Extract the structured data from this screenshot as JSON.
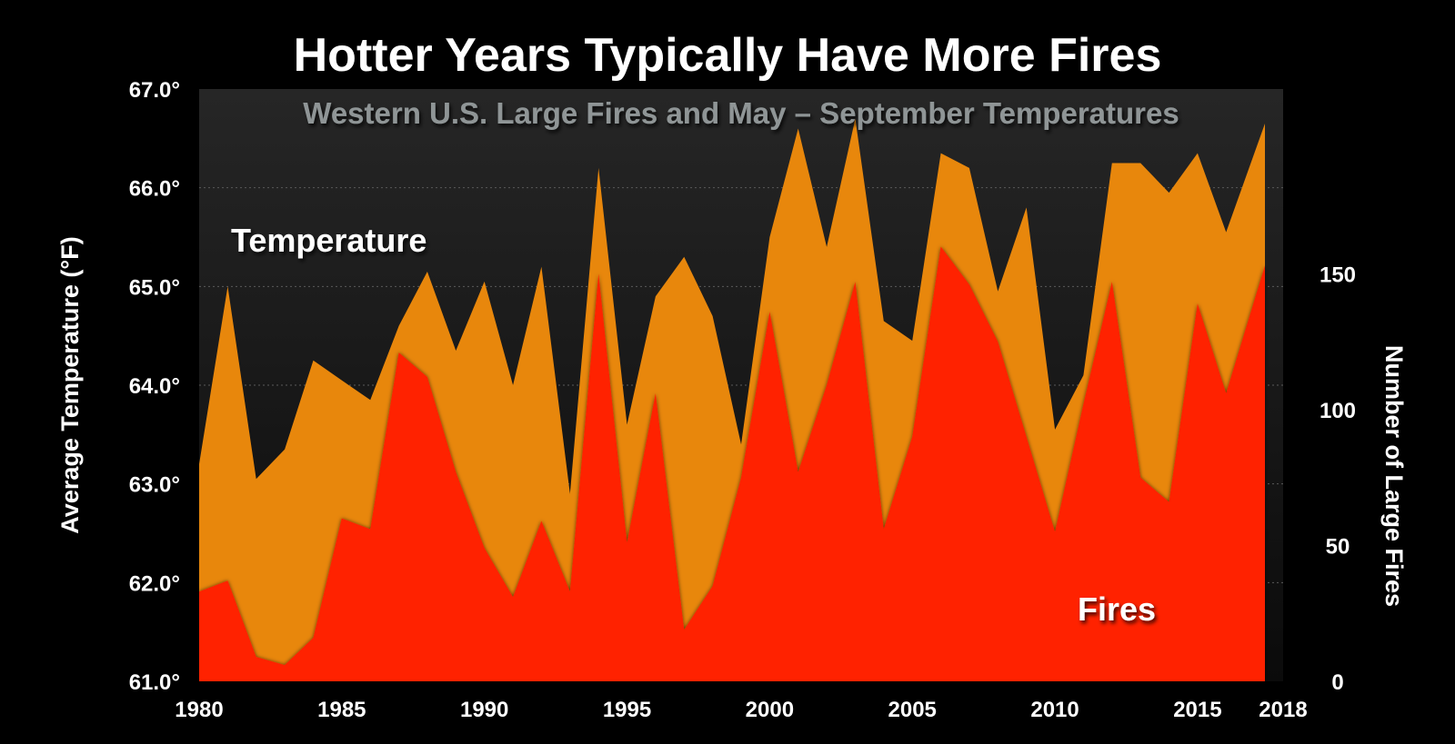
{
  "chart_data": {
    "type": "area",
    "title": "Hotter Years Typically Have More Fires",
    "subtitle": "Western U.S. Large Fires and May – September Temperatures",
    "ylabel_left": "Average Temperature (°F)",
    "ylabel_right": "Number of Large Fires",
    "x": [
      1980,
      1981,
      1982,
      1983,
      1984,
      1985,
      1986,
      1987,
      1988,
      1989,
      1990,
      1991,
      1992,
      1993,
      1994,
      1995,
      1996,
      1997,
      1998,
      1999,
      2000,
      2001,
      2002,
      2003,
      2004,
      2005,
      2006,
      2007,
      2008,
      2009,
      2010,
      2011,
      2012,
      2013,
      2014,
      2015,
      2016,
      2017
    ],
    "x_ticks": [
      1980,
      1985,
      1990,
      1995,
      2000,
      2005,
      2010,
      2015,
      2018
    ],
    "x_tick_labels": [
      "1980",
      "1985",
      "1990",
      "1995",
      "2000",
      "2005",
      "2010",
      "2015",
      "2018"
    ],
    "xlim": [
      1980,
      2018
    ],
    "ylim_left": [
      61.0,
      67.0
    ],
    "yticks_left": [
      "61.0°",
      "62.0°",
      "63.0°",
      "64.0°",
      "65.0°",
      "66.0°",
      "67.0°"
    ],
    "ylim_right": [
      0,
      218
    ],
    "yticks_right": [
      "0",
      "50",
      "100",
      "150"
    ],
    "grid": "horizontal dashed",
    "series": [
      {
        "name": "Temperature",
        "axis": "left",
        "color": "#e8870c",
        "values": [
          63.2,
          65.0,
          63.05,
          63.35,
          64.25,
          64.05,
          63.85,
          64.6,
          65.15,
          64.35,
          65.05,
          64.0,
          65.2,
          62.9,
          66.2,
          63.6,
          64.9,
          65.3,
          64.7,
          63.4,
          65.5,
          66.6,
          65.4,
          66.7,
          64.65,
          64.45,
          66.35,
          66.2,
          64.95,
          65.8,
          63.55,
          64.1,
          66.25,
          66.25,
          65.95,
          66.35,
          65.55,
          66.65
        ]
      },
      {
        "name": "Fires",
        "axis": "right",
        "color": "#ff2200",
        "values": [
          33,
          37,
          9,
          6,
          16,
          60,
          56,
          121,
          112,
          77,
          49,
          31,
          59,
          33,
          150,
          51,
          106,
          19,
          35,
          75,
          136,
          77,
          109,
          147,
          56,
          90,
          160,
          146,
          125,
          90,
          55,
          102,
          147,
          75,
          66,
          139,
          106,
          153
        ]
      }
    ],
    "annotations": [
      {
        "text": "Temperature"
      },
      {
        "text": "Fires"
      }
    ]
  }
}
